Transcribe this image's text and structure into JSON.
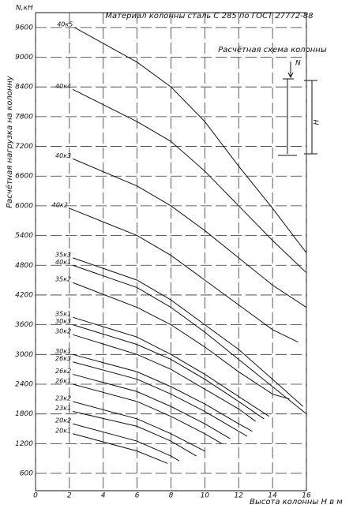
{
  "chart_data": {
    "type": "line",
    "title": "Материал колонны сталь С 285 по ГОСТ 27772-88",
    "y_unit_label": "N,кН",
    "ylabel": "Расчётная нагрузка на колонну",
    "xlabel": "Высота колонны H в м",
    "scheme": {
      "title": "Расчётная схема колонны",
      "force_label": "N",
      "height_label": "H"
    },
    "xlim": [
      0,
      16
    ],
    "xticks": [
      0,
      2,
      4,
      6,
      8,
      10,
      12,
      14,
      16
    ],
    "ylim": [
      250,
      9900
    ],
    "yticks": [
      600,
      1200,
      1800,
      2400,
      3000,
      3600,
      4200,
      4800,
      5400,
      6000,
      6600,
      7200,
      7800,
      8400,
      9000,
      9600
    ],
    "grid": true,
    "color": "#111111",
    "series": [
      {
        "name": "40к5",
        "x": [
          2.3,
          6,
          8,
          10,
          12,
          14,
          16
        ],
        "values": [
          9600,
          8900,
          8400,
          7700,
          6800,
          5950,
          5050
        ]
      },
      {
        "name": "40к4",
        "x": [
          2.2,
          6,
          8,
          10,
          12,
          14,
          16
        ],
        "values": [
          8350,
          7700,
          7300,
          6700,
          6000,
          5300,
          4650
        ]
      },
      {
        "name": "40к3",
        "x": [
          2.2,
          6,
          8,
          10,
          12,
          14,
          16
        ],
        "values": [
          6950,
          6400,
          6000,
          5500,
          4950,
          4400,
          3950
        ]
      },
      {
        "name": "40к2",
        "x": [
          2,
          6,
          8,
          10,
          12,
          14,
          15.5
        ],
        "values": [
          5950,
          5400,
          5000,
          4500,
          4000,
          3500,
          3250
        ]
      },
      {
        "name": "35к3",
        "x": [
          2.2,
          6,
          8,
          10,
          12,
          14,
          15.8
        ],
        "values": [
          4950,
          4500,
          4100,
          3600,
          3100,
          2500,
          1950
        ]
      },
      {
        "name": "40к1",
        "x": [
          2.2,
          6,
          8,
          10,
          12,
          14,
          16
        ],
        "values": [
          4800,
          4350,
          3950,
          3450,
          2900,
          2350,
          1800
        ]
      },
      {
        "name": "35к2",
        "x": [
          2.2,
          6,
          8,
          10,
          12,
          14,
          15
        ],
        "values": [
          4450,
          3950,
          3600,
          3150,
          2650,
          2200,
          2100
        ]
      },
      {
        "name": "35к1",
        "x": [
          2.2,
          6,
          8,
          10,
          12,
          13.8
        ],
        "values": [
          3750,
          3350,
          3000,
          2600,
          2150,
          1750
        ]
      },
      {
        "name": "30к3",
        "x": [
          2.2,
          6,
          8,
          10,
          12,
          13.5
        ],
        "values": [
          3600,
          3200,
          2900,
          2500,
          2050,
          1700
        ]
      },
      {
        "name": "30к2",
        "x": [
          2.2,
          6,
          8,
          10,
          12,
          13
        ],
        "values": [
          3400,
          3000,
          2700,
          2300,
          1900,
          1650
        ]
      },
      {
        "name": "30к1",
        "x": [
          2.2,
          6,
          8,
          10,
          12,
          12.8
        ],
        "values": [
          3000,
          2650,
          2350,
          2000,
          1600,
          1450
        ]
      },
      {
        "name": "26к3",
        "x": [
          2.2,
          6,
          8,
          10,
          12,
          12.5
        ],
        "values": [
          2850,
          2500,
          2200,
          1850,
          1450,
          1350
        ]
      },
      {
        "name": "26к2",
        "x": [
          2.2,
          6,
          8,
          10,
          11.5
        ],
        "values": [
          2600,
          2250,
          1950,
          1600,
          1300
        ]
      },
      {
        "name": "26к1",
        "x": [
          2.2,
          6,
          8,
          10,
          11
        ],
        "values": [
          2400,
          2050,
          1750,
          1400,
          1200
        ]
      },
      {
        "name": "23к2",
        "x": [
          2.2,
          6,
          8,
          10
        ],
        "values": [
          2050,
          1700,
          1400,
          1050
        ]
      },
      {
        "name": "23к1",
        "x": [
          2.2,
          6,
          8,
          9.5
        ],
        "values": [
          1850,
          1550,
          1250,
          950
        ]
      },
      {
        "name": "20к2",
        "x": [
          2.2,
          6,
          8,
          8.5
        ],
        "values": [
          1600,
          1250,
          950,
          850
        ]
      },
      {
        "name": "20к1",
        "x": [
          2.2,
          6,
          7.8
        ],
        "values": [
          1400,
          1050,
          800
        ]
      }
    ]
  }
}
